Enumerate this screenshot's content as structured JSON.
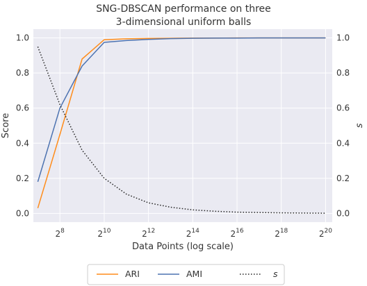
{
  "chart_data": {
    "type": "line",
    "title_lines": [
      "SNG-DBSCAN performance on three",
      "3-dimensional uniform balls"
    ],
    "xlabel": "Data Points (log scale)",
    "ylabel_left": "Score",
    "ylabel_right": "s",
    "x_scale": "log2",
    "xlim_exponent": [
      6.8,
      20.3
    ],
    "x_ticks": [
      {
        "base": "2",
        "exp": "8",
        "value": 256
      },
      {
        "base": "2",
        "exp": "10",
        "value": 1024
      },
      {
        "base": "2",
        "exp": "12",
        "value": 4096
      },
      {
        "base": "2",
        "exp": "14",
        "value": 16384
      },
      {
        "base": "2",
        "exp": "16",
        "value": 65536
      },
      {
        "base": "2",
        "exp": "18",
        "value": 262144
      },
      {
        "base": "2",
        "exp": "20",
        "value": 1048576
      }
    ],
    "ylim_left": [
      -0.05,
      1.05
    ],
    "y_ticks_left": [
      "0.0",
      "0.2",
      "0.4",
      "0.6",
      "0.8",
      "1.0"
    ],
    "ylim_right": [
      -0.05,
      1.05
    ],
    "y_ticks_right": [
      "0.0",
      "0.2",
      "0.4",
      "0.6",
      "0.8",
      "1.0"
    ],
    "grid": true,
    "background": "#eaeaf2",
    "legend_position": "below",
    "x": [
      128,
      256,
      512,
      1024,
      2048,
      4096,
      8192,
      16384,
      32768,
      65536,
      131072,
      262144,
      524288,
      1048576
    ],
    "series": [
      {
        "name": "ARI",
        "axis": "left",
        "color": "#ff8c1a",
        "style": "solid",
        "values": [
          0.03,
          0.45,
          0.88,
          0.99,
          0.995,
          0.997,
          0.998,
          0.999,
          0.999,
          1.0,
          1.0,
          1.0,
          1.0,
          1.0
        ]
      },
      {
        "name": "AMI",
        "axis": "left",
        "color": "#4c72b0",
        "style": "solid",
        "values": [
          0.18,
          0.6,
          0.84,
          0.975,
          0.985,
          0.992,
          0.996,
          0.998,
          0.999,
          0.999,
          1.0,
          1.0,
          1.0,
          1.0
        ]
      },
      {
        "name": "s",
        "axis": "right",
        "color": "#222222",
        "style": "dotted",
        "values": [
          0.95,
          0.62,
          0.36,
          0.2,
          0.11,
          0.06,
          0.035,
          0.02,
          0.012,
          0.007,
          0.005,
          0.003,
          0.002,
          0.001
        ]
      }
    ]
  }
}
